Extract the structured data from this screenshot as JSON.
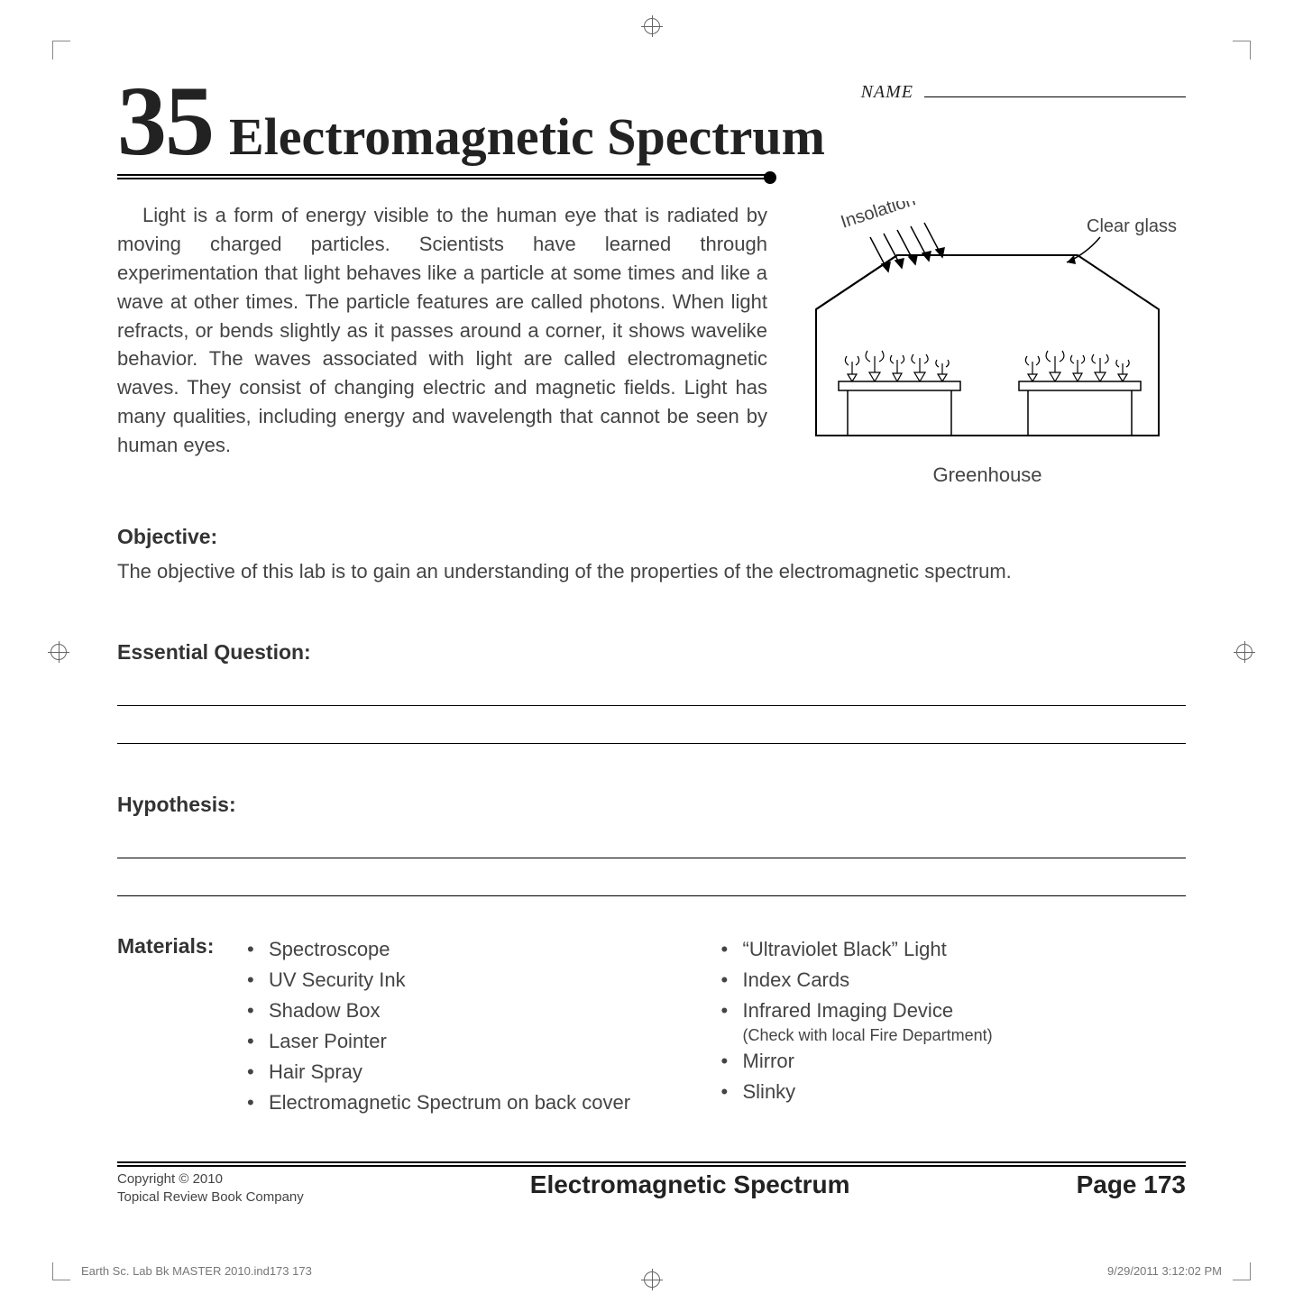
{
  "name_label": "NAME",
  "chapter_number": "35",
  "chapter_title": "Electromagnetic Spectrum",
  "intro_paragraph": "Light is a form of energy visible to the human eye that is radiated by moving charged particles. Scientists have learned through experimentation that light behaves like a particle at some times and like a wave at other times. The particle features are called photons. When light refracts, or bends slightly as it passes around a corner, it shows wavelike behavior. The waves associated with light are called electromagnetic waves. They consist of changing electric and magnetic fields. Light has many qualities, including energy and wavelength that cannot be seen by human eyes.",
  "figure": {
    "insolation_label": "Insolation",
    "clear_glass_label": "Clear glass",
    "caption": "Greenhouse"
  },
  "objective": {
    "heading": "Objective:",
    "text": "The objective of this lab is to gain an understanding of the properties of the electromagnetic spectrum."
  },
  "essential_question": {
    "heading": "Essential Question:",
    "blank_lines": 2
  },
  "hypothesis": {
    "heading": "Hypothesis:",
    "blank_lines": 2
  },
  "materials": {
    "heading": "Materials:",
    "col1": [
      {
        "text": "Spectroscope"
      },
      {
        "text": "UV Security Ink"
      },
      {
        "text": "Shadow Box"
      },
      {
        "text": "Laser Pointer"
      },
      {
        "text": "Hair Spray"
      },
      {
        "text": "Electromagnetic Spectrum on back cover"
      }
    ],
    "col2": [
      {
        "text": "“Ultraviolet Black” Light"
      },
      {
        "text": "Index Cards"
      },
      {
        "text": "Infrared Imaging Device",
        "sub": "(Check with local Fire Department)"
      },
      {
        "text": "Mirror"
      },
      {
        "text": "Slinky"
      }
    ]
  },
  "footer": {
    "copyright_line1": "Copyright © 2010",
    "copyright_line2": "Topical Review Book Company",
    "title": "Electromagnetic Spectrum",
    "page": "Page 173"
  },
  "slug": {
    "left": "Earth Sc. Lab Bk MASTER 2010.ind173   173",
    "right": "9/29/2011   3:12:02 PM"
  },
  "colors": {
    "text": "#444444",
    "heading": "#333333",
    "rule": "#000000",
    "background": "#ffffff"
  }
}
